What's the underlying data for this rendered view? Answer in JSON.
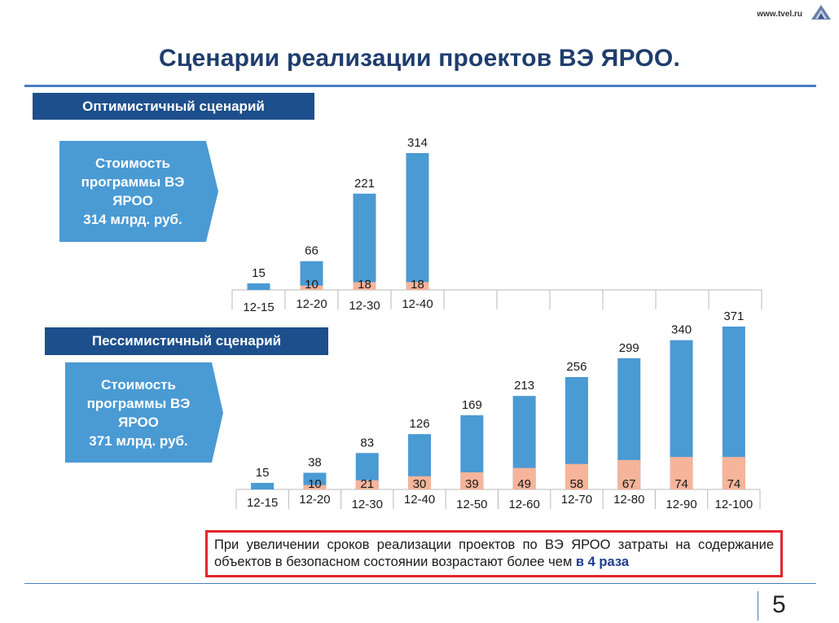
{
  "header": {
    "site_url": "www.tvel.ru"
  },
  "title": "Сценарии реализации проектов  ВЭ ЯРОО.",
  "optimistic": {
    "banner": "Оптимистичный сценарий",
    "callout_lines": [
      "Стоимость",
      "программы ВЭ",
      "ЯРОО",
      "314  млрд. руб."
    ]
  },
  "pessimistic": {
    "banner": "Пессимистичный сценарий",
    "callout_lines": [
      "Стоимость",
      "программы ВЭ",
      "ЯРОО",
      "371  млрд. руб."
    ]
  },
  "colors": {
    "blue": "#4a9ad4",
    "salmon": "#f6b49a",
    "axis": "#b8b8b8",
    "banner": "#1d4f8c",
    "callout": "#4a9ad4",
    "border_red": "#e2262b"
  },
  "chart_data": [
    {
      "type": "bar",
      "stacked": true,
      "categories": [
        "12-15",
        "12-20",
        "12-30",
        "12-40",
        "",
        "",
        "",
        "",
        "",
        ""
      ],
      "totals": [
        15,
        66,
        221,
        314,
        null,
        null,
        null,
        null,
        null,
        null
      ],
      "series": [
        {
          "values": [
            null,
            10,
            18,
            18,
            null,
            null,
            null,
            null,
            null,
            null
          ],
          "color": "#f6b49a"
        }
      ],
      "ylim": [
        0,
        314
      ],
      "grid": false
    },
    {
      "type": "bar",
      "stacked": true,
      "categories": [
        "12-15",
        "12-20",
        "12-30",
        "12-40",
        "12-50",
        "12-60",
        "12-70",
        "12-80",
        "12-90",
        "12-100"
      ],
      "totals": [
        15,
        38,
        83,
        126,
        169,
        213,
        256,
        299,
        340,
        371
      ],
      "series": [
        {
          "values": [
            null,
            10,
            21,
            30,
            39,
            49,
            58,
            67,
            74,
            74
          ],
          "color": "#f6b49a"
        }
      ],
      "ylim": [
        0,
        371
      ],
      "grid": false
    }
  ],
  "note": {
    "text": "При увеличении сроков реализации проектов по ВЭ ЯРОО затраты на содержание объектов в безопасном состоянии возрастают более чем ",
    "emphasis": "в 4 раза"
  },
  "page_number": "5"
}
